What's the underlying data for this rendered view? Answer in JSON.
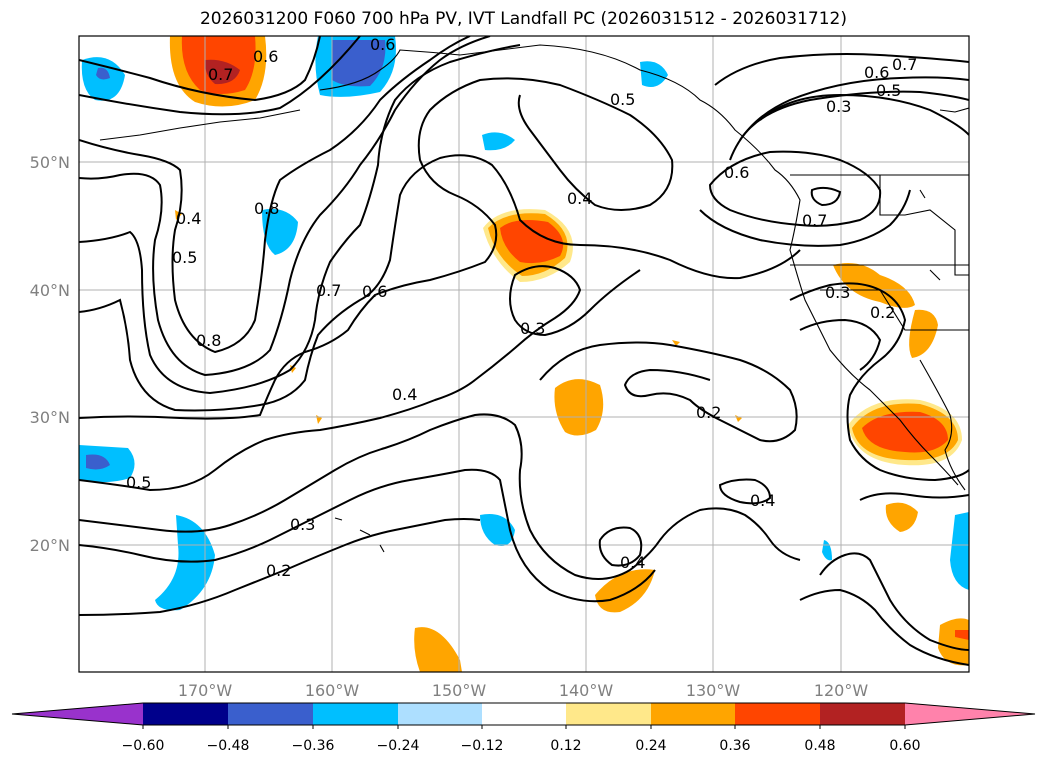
{
  "title": "2026031200 F060 700 hPa PV, IVT Landfall PC (2026031512 - 2026031712)",
  "lat_labels": [
    "50°N",
    "40°N",
    "30°N",
    "20°N"
  ],
  "lon_labels": [
    "170°W",
    "160°W",
    "150°W",
    "140°W",
    "130°W",
    "120°W"
  ],
  "contour_labels": [
    "0.6",
    "0.7",
    "0.6",
    "0.7",
    "0.6",
    "0.5",
    "0.5",
    "0.3",
    "0.6",
    "0.7",
    "0.4",
    "0.8",
    "0.4",
    "0.5",
    "0.7",
    "0.6",
    "0.8",
    "0.3",
    "0.3",
    "0.2",
    "0.4",
    "0.2",
    "0.5",
    "0.3",
    "0.2",
    "0.4",
    "0.4"
  ],
  "colorbar": {
    "ticks": [
      "−0.60",
      "−0.48",
      "−0.36",
      "−0.24",
      "−0.12",
      "0.12",
      "0.24",
      "0.36",
      "0.48",
      "0.60"
    ],
    "colors": [
      "#9932CC",
      "#00008B",
      "#3A5FCD",
      "#00BFFF",
      "#ADDFFF",
      "#FFFFFF",
      "#FFE88A",
      "#FFA500",
      "#FF4500",
      "#B22222",
      "#FF82AB"
    ]
  }
}
